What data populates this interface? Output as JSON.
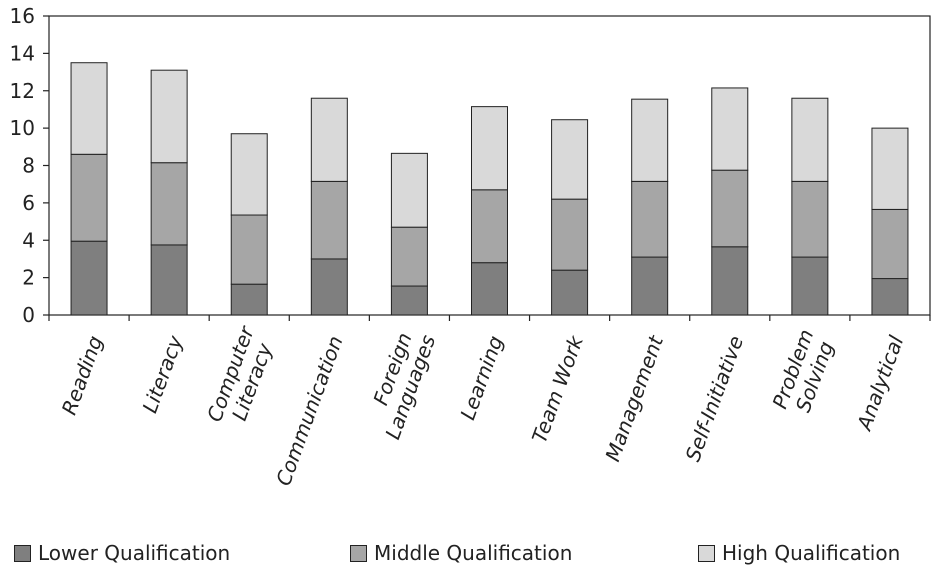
{
  "chart_data": {
    "type": "bar",
    "stacked": true,
    "categories": [
      "Reading",
      "Literacy",
      "Computer\nLiteracy",
      "Communication",
      "Foreign\nLanguages",
      "Learning",
      "Team Work",
      "Management",
      "Self-Initiative",
      "Problem\nSolving",
      "Analytical"
    ],
    "series": [
      {
        "name": "Lower Qualification",
        "color": "#7f7f7f",
        "values": [
          3.95,
          3.75,
          1.65,
          3.0,
          1.55,
          2.8,
          2.4,
          3.1,
          3.65,
          3.1,
          1.95
        ]
      },
      {
        "name": "Middle Qualification",
        "color": "#a6a6a6",
        "values": [
          4.65,
          4.4,
          3.7,
          4.15,
          3.15,
          3.9,
          3.8,
          4.05,
          4.1,
          4.05,
          3.7
        ]
      },
      {
        "name": "High Qualification",
        "color": "#d9d9d9",
        "values": [
          4.9,
          4.95,
          4.35,
          4.45,
          3.95,
          4.45,
          4.25,
          4.4,
          4.4,
          4.45,
          4.35
        ]
      }
    ],
    "ylim": [
      0,
      16
    ],
    "yticks": [
      0,
      2,
      4,
      6,
      8,
      10,
      12,
      14,
      16
    ],
    "grid": false,
    "legend_position": "bottom"
  }
}
